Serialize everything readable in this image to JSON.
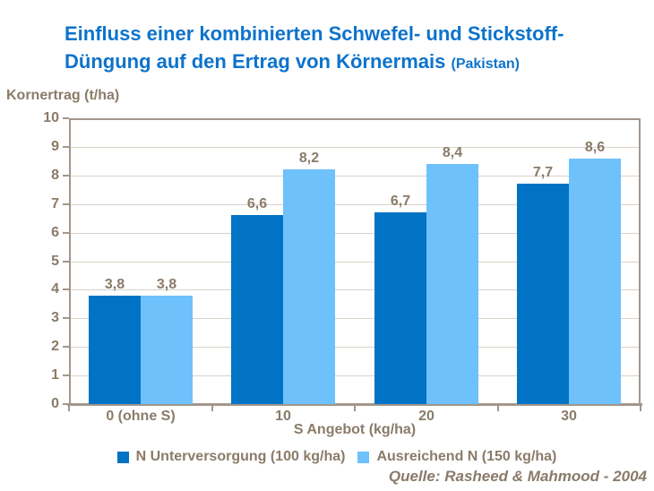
{
  "slide": {
    "title_line1": "Einfluss einer kombinierten Schwefel- und Stickstoff-",
    "title_line2": "Düngung auf den Ertrag von Körnermais",
    "title_suffix": "(Pakistan)",
    "source": "Quelle: Rasheed & Mahmood - 2004"
  },
  "colors": {
    "title_blue": "#0d73cb",
    "series1_dark_blue": "#0073c4",
    "series2_light_blue": "#6ec1fb",
    "text_brown": "#8a7b69",
    "axis_line": "#a3968b",
    "gridline": "#d9d2c8",
    "background": "#ffffff"
  },
  "chart_data": {
    "type": "bar",
    "title": "Einfluss einer kombinierten Schwefel- und Stickstoff-Düngung auf den Ertrag von Körnermais (Pakistan)",
    "ylabel": "Kornertrag (t/ha)",
    "xlabel": "S Angebot (kg/ha)",
    "categories": [
      "0 (ohne S)",
      "10",
      "20",
      "30"
    ],
    "series": [
      {
        "name": "N Unterversorgung (100 kg/ha)",
        "color": "#0073c4",
        "values": [
          3.8,
          6.6,
          6.7,
          7.7
        ],
        "labels": [
          "3,8",
          "6,6",
          "6,7",
          "7,7"
        ]
      },
      {
        "name": "Ausreichend N (150 kg/ha)",
        "color": "#6ec1fb",
        "values": [
          3.8,
          8.2,
          8.4,
          8.6
        ],
        "labels": [
          "3,8",
          "8,2",
          "8,4",
          "8,6"
        ]
      }
    ],
    "ylim": [
      0,
      10
    ],
    "ytick_step": 1,
    "grid": true,
    "legend_position": "bottom",
    "annotations": [
      "Quelle: Rasheed & Mahmood - 2004"
    ]
  }
}
